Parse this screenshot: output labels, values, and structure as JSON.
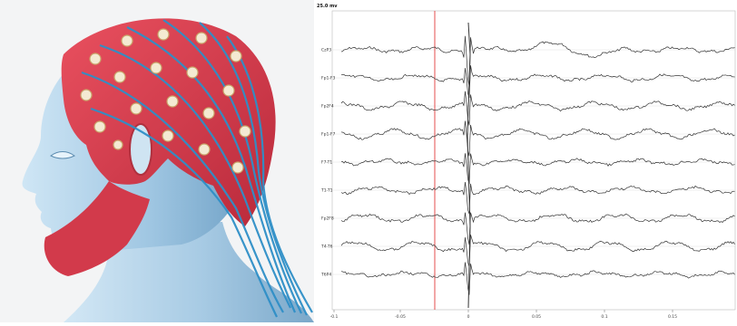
{
  "photo": {
    "subject": "head-model-with-eeg-electrode-cap",
    "colors": {
      "cap": "#d8384a",
      "head": "#a9cde6",
      "cable": "#2f8fc7",
      "electrode": "#f4ead2"
    }
  },
  "eeg": {
    "scale_label": "25.0 mv",
    "channels": [
      "CzP3",
      "Fp1-F3",
      "Fp2F4",
      "Fp1-F7",
      "F7-T1",
      "T1-T1",
      "Fp2F8",
      "T4-T6",
      "T6P4"
    ],
    "x_ticks": [
      "-0.1",
      "-0.05",
      "0",
      "0.05",
      "0.1",
      "0.15"
    ],
    "colors": {
      "trace": "#333333",
      "marker": "#e23b3b",
      "grid": "#d8d8d8"
    }
  }
}
